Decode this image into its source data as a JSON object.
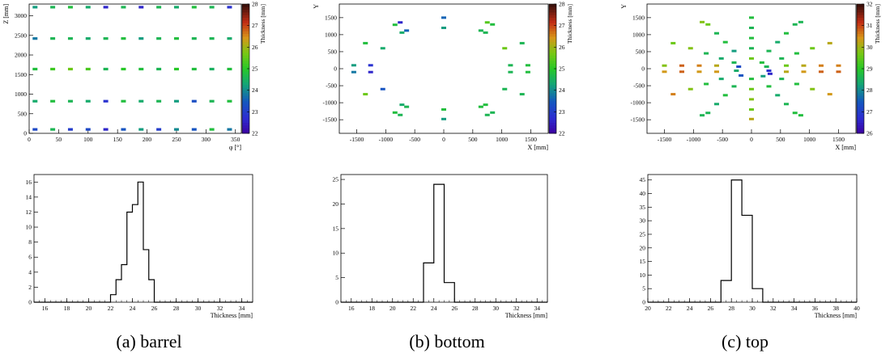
{
  "captions": [
    "(a) barrel",
    "(b) bottom",
    "(c) top"
  ],
  "chart_data": [
    {
      "type": "heatmap",
      "title": "",
      "xlabel": "φ [°]",
      "ylabel": "Z [mm]",
      "zlabel": "Thickness [mm]",
      "xlim": [
        0,
        360
      ],
      "ylim": [
        0,
        3300
      ],
      "zlim": [
        22,
        28
      ],
      "xticks": [
        0,
        50,
        100,
        150,
        200,
        250,
        300,
        350
      ],
      "yticks": [
        0,
        500,
        1000,
        1500,
        2000,
        2500,
        3000
      ],
      "zticks": [
        22,
        23,
        24,
        25,
        26,
        27,
        28
      ],
      "rows_z": [
        100,
        820,
        1640,
        2420,
        3220
      ],
      "cols_phi": [
        10,
        40,
        70,
        100,
        130,
        160,
        190,
        220,
        250,
        280,
        310,
        340
      ],
      "values": [
        [
          23.2,
          24.6,
          23.0,
          23.2,
          22.6,
          23.4,
          24.2,
          23.0,
          24.0,
          23.4,
          24.8,
          23.8
        ],
        [
          24.4,
          24.8,
          24.6,
          24.4,
          22.8,
          24.8,
          24.4,
          24.6,
          24.2,
          23.3,
          24.6,
          24.8
        ],
        [
          24.8,
          25.2,
          25.6,
          25.3,
          24.6,
          25.0,
          24.8,
          24.6,
          25.0,
          24.8,
          24.5,
          24.8
        ],
        [
          23.8,
          24.6,
          24.6,
          24.4,
          24.6,
          24.8,
          24.2,
          24.6,
          24.8,
          24.6,
          24.6,
          24.4
        ],
        [
          24.2,
          24.6,
          24.8,
          24.4,
          22.6,
          24.6,
          22.6,
          24.6,
          24.4,
          24.8,
          24.6,
          22.8
        ]
      ]
    },
    {
      "type": "scatter",
      "title": "",
      "xlabel": "X [mm]",
      "ylabel": "Y",
      "zlabel": "Thickness [mm]",
      "xlim": [
        -1800,
        1800
      ],
      "ylim": [
        -1900,
        1900
      ],
      "zlim": [
        22,
        28
      ],
      "xticks": [
        -1500,
        -1000,
        -500,
        0,
        500,
        1000,
        1500
      ],
      "yticks": [
        -1500,
        -1000,
        -500,
        0,
        500,
        1000,
        1500
      ],
      "zticks": [
        22,
        23,
        24,
        25,
        26,
        27,
        28
      ],
      "points": [
        [
          0,
          1500,
          23.6
        ],
        [
          0,
          1200,
          24.2
        ],
        [
          0,
          -1200,
          24.8
        ],
        [
          0,
          -1480,
          24.2
        ],
        [
          -750,
          1360,
          22.6
        ],
        [
          -840,
          1290,
          24.8
        ],
        [
          -720,
          1060,
          24.4
        ],
        [
          -640,
          1120,
          23.6
        ],
        [
          750,
          1360,
          25.4
        ],
        [
          840,
          1300,
          24.8
        ],
        [
          640,
          1120,
          24.6
        ],
        [
          720,
          1060,
          24.6
        ],
        [
          -1350,
          750,
          24.8
        ],
        [
          -1050,
          600,
          24.4
        ],
        [
          1050,
          600,
          25.6
        ],
        [
          1350,
          750,
          24.6
        ],
        [
          -1350,
          -750,
          25.6
        ],
        [
          -1050,
          -600,
          23.4
        ],
        [
          1050,
          -600,
          24.6
        ],
        [
          1350,
          -750,
          24.6
        ],
        [
          -750,
          -1360,
          24.6
        ],
        [
          -840,
          -1290,
          24.8
        ],
        [
          -720,
          -1060,
          24.4
        ],
        [
          -640,
          -1120,
          24.6
        ],
        [
          750,
          -1360,
          24.6
        ],
        [
          840,
          -1290,
          24.6
        ],
        [
          640,
          -1120,
          24.8
        ],
        [
          720,
          -1060,
          24.8
        ],
        [
          -1550,
          100,
          24.2
        ],
        [
          -1550,
          -100,
          23.8
        ],
        [
          -1260,
          100,
          22.8
        ],
        [
          -1260,
          -100,
          22.6
        ],
        [
          1150,
          100,
          24.6
        ],
        [
          1150,
          -100,
          24.6
        ],
        [
          1450,
          100,
          24.8
        ],
        [
          1450,
          -100,
          24.8
        ]
      ]
    },
    {
      "type": "scatter",
      "title": "",
      "xlabel": "X [mm]",
      "ylabel": "Y",
      "zlabel": "Thickness [mm]",
      "xlim": [
        -1800,
        1800
      ],
      "ylim": [
        -1900,
        1900
      ],
      "zlim": [
        26,
        32
      ],
      "xticks": [
        -1500,
        -1000,
        -500,
        0,
        500,
        1000,
        1500
      ],
      "yticks": [
        -1500,
        -1000,
        -500,
        0,
        500,
        1000,
        1500
      ],
      "zticks": [
        26,
        27,
        28,
        29,
        30,
        31,
        32
      ],
      "points": [
        [
          0,
          1500,
          28.8
        ],
        [
          0,
          1200,
          28.6
        ],
        [
          0,
          900,
          28.8
        ],
        [
          0,
          600,
          28.6
        ],
        [
          0,
          300,
          29.6
        ],
        [
          0,
          -300,
          28.8
        ],
        [
          0,
          -600,
          29.6
        ],
        [
          0,
          -900,
          29.8
        ],
        [
          0,
          -1200,
          29.6
        ],
        [
          0,
          -1480,
          30.2
        ],
        [
          -1500,
          90,
          29.8
        ],
        [
          -1500,
          -90,
          30.4
        ],
        [
          -1200,
          90,
          30.8
        ],
        [
          -1200,
          -90,
          30.8
        ],
        [
          -900,
          90,
          30.6
        ],
        [
          -900,
          -90,
          30.4
        ],
        [
          -600,
          90,
          30.2
        ],
        [
          -600,
          -90,
          30.4
        ],
        [
          1500,
          90,
          30.6
        ],
        [
          1500,
          -90,
          30.8
        ],
        [
          1200,
          90,
          30.6
        ],
        [
          1200,
          -90,
          30.8
        ],
        [
          900,
          90,
          30.2
        ],
        [
          900,
          -90,
          30.4
        ],
        [
          600,
          90,
          29.6
        ],
        [
          600,
          -90,
          30.2
        ],
        [
          -1350,
          750,
          29.6
        ],
        [
          -1050,
          600,
          29.8
        ],
        [
          -780,
          450,
          28.6
        ],
        [
          -520,
          300,
          28.4
        ],
        [
          1350,
          750,
          30.2
        ],
        [
          1050,
          600,
          29.6
        ],
        [
          780,
          450,
          28.8
        ],
        [
          520,
          300,
          28.6
        ],
        [
          -1350,
          -750,
          30.6
        ],
        [
          -1050,
          -600,
          29.8
        ],
        [
          -780,
          -450,
          28.8
        ],
        [
          -520,
          -300,
          28.4
        ],
        [
          1350,
          -750,
          30.4
        ],
        [
          1050,
          -600,
          29.8
        ],
        [
          780,
          -450,
          28.8
        ],
        [
          520,
          -300,
          28.6
        ],
        [
          -750,
          1300,
          29.6
        ],
        [
          -600,
          1040,
          28.6
        ],
        [
          -450,
          780,
          28.8
        ],
        [
          -300,
          520,
          28.2
        ],
        [
          750,
          1300,
          28.6
        ],
        [
          600,
          1040,
          28.8
        ],
        [
          450,
          780,
          28.4
        ],
        [
          300,
          520,
          28.6
        ],
        [
          -750,
          -1300,
          28.6
        ],
        [
          -600,
          -1040,
          28.4
        ],
        [
          -450,
          -780,
          28.8
        ],
        [
          -300,
          -520,
          28.6
        ],
        [
          750,
          -1300,
          28.8
        ],
        [
          600,
          -1040,
          28.6
        ],
        [
          450,
          -780,
          28.4
        ],
        [
          300,
          -520,
          28.8
        ],
        [
          -850,
          1370,
          29.8
        ],
        [
          850,
          1370,
          28.6
        ],
        [
          -850,
          -1370,
          28.6
        ],
        [
          850,
          -1370,
          28.8
        ],
        [
          -300,
          180,
          28.6
        ],
        [
          -220,
          60,
          27.2
        ],
        [
          -260,
          -60,
          28.4
        ],
        [
          -180,
          -200,
          27.4
        ],
        [
          180,
          180,
          28.8
        ],
        [
          260,
          60,
          28.6
        ],
        [
          300,
          -60,
          26.8
        ],
        [
          320,
          -150,
          26.6
        ],
        [
          200,
          -220,
          28.2
        ]
      ]
    },
    {
      "type": "bar",
      "title": "",
      "xlabel": "Thickness [mm]",
      "ylabel": "",
      "xlim": [
        15,
        35
      ],
      "ylim": [
        0,
        17
      ],
      "xticks": [
        16,
        18,
        20,
        22,
        24,
        26,
        28,
        30,
        32,
        34
      ],
      "yticks": [
        0,
        2,
        4,
        6,
        8,
        10,
        12,
        14,
        16
      ],
      "bin_edges": [
        22,
        22.5,
        23,
        23.5,
        24,
        24.5,
        25,
        25.5,
        26
      ],
      "values": [
        1,
        3,
        5,
        12,
        13,
        16,
        7,
        3
      ]
    },
    {
      "type": "bar",
      "title": "",
      "xlabel": "Thickness [mm]",
      "ylabel": "",
      "xlim": [
        15,
        35
      ],
      "ylim": [
        0,
        26
      ],
      "xticks": [
        16,
        18,
        20,
        22,
        24,
        26,
        28,
        30,
        32,
        34
      ],
      "yticks": [
        0,
        5,
        10,
        15,
        20,
        25
      ],
      "bin_edges": [
        23,
        24,
        25,
        26
      ],
      "values": [
        8,
        24,
        4
      ]
    },
    {
      "type": "bar",
      "title": "",
      "xlabel": "Thickness [mm]",
      "ylabel": "",
      "xlim": [
        20,
        40
      ],
      "ylim": [
        0,
        47
      ],
      "xticks": [
        20,
        22,
        24,
        26,
        28,
        30,
        32,
        34,
        36,
        38,
        40
      ],
      "yticks": [
        0,
        5,
        10,
        15,
        20,
        25,
        30,
        35,
        40,
        45
      ],
      "bin_edges": [
        27,
        28,
        29,
        30,
        31
      ],
      "values": [
        8,
        45,
        32,
        5
      ]
    }
  ]
}
